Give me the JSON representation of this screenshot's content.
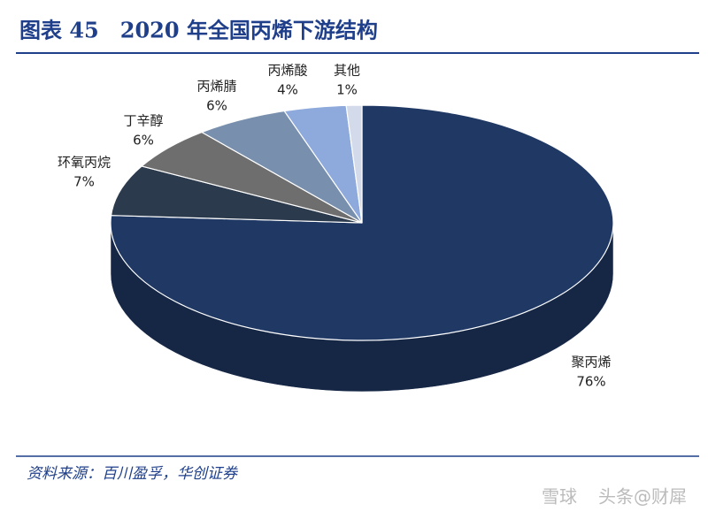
{
  "chart_data": {
    "type": "pie",
    "title": "图表 45　2020 年全国丙烯下游结构",
    "categories": [
      "聚丙烯",
      "环氧丙烷",
      "丁辛醇",
      "丙烯腈",
      "丙烯酸",
      "其他"
    ],
    "values": [
      76,
      7,
      6,
      6,
      4,
      1
    ],
    "value_labels": [
      "76%",
      "7%",
      "6%",
      "6%",
      "4%",
      "1%"
    ],
    "colors": [
      "#1f3864",
      "#2c3a4d",
      "#6e6e6e",
      "#7890ad",
      "#8ea9db",
      "#d3dbea"
    ],
    "source": "资料来源：百川盈孚，华创证券",
    "watermark": [
      "雪球",
      "头条@财犀"
    ]
  }
}
